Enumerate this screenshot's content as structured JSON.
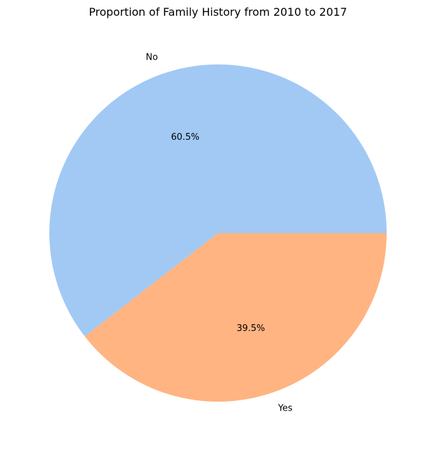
{
  "chart_data": {
    "type": "pie",
    "title": "Proportion of Family History from 2010 to 2017",
    "categories": [
      "No",
      "Yes"
    ],
    "values": [
      60.5,
      39.5
    ],
    "percent_labels": [
      "60.5%",
      "39.5%"
    ],
    "colors": [
      "#a1c9f4",
      "#ffb482"
    ],
    "start_angle_deg": 0,
    "direction": "counterclockwise",
    "legend": "none"
  }
}
